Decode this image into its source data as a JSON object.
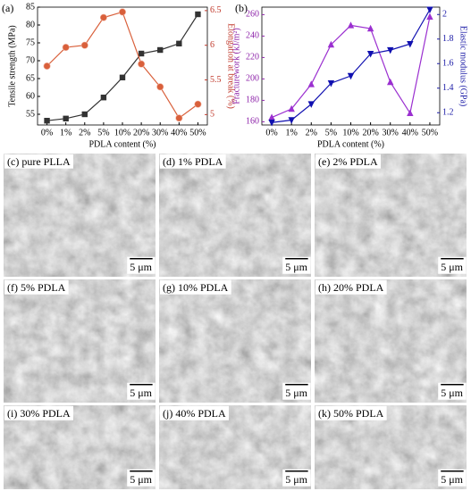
{
  "chart_data": [
    {
      "type": "line",
      "panel": "(a)",
      "x_label": "PDLA content (%)",
      "y_label": "Tensile strength (MPa)",
      "y2_label": "Elongation at break (%)",
      "categories": [
        "0%",
        "1%",
        "2%",
        "5%",
        "10%",
        "20%",
        "30%",
        "40%",
        "50%"
      ],
      "ylim": [
        52,
        85
      ],
      "yticks": [
        55,
        60,
        65,
        70,
        75,
        80,
        85
      ],
      "y2lim": [
        4.85,
        6.55
      ],
      "y2ticks": [
        5,
        5.5,
        6,
        6.5
      ],
      "y_color": "#000000",
      "y2_color": "#c0392b",
      "series": [
        {
          "name": "Tensile strength",
          "color": "#333333",
          "marker": "square",
          "values": [
            53.2,
            53.8,
            55,
            59.7,
            65.3,
            72,
            73,
            74.8,
            83
          ]
        },
        {
          "name": "Elongation at break",
          "color": "#d9603b",
          "marker": "circle",
          "axis": "y2",
          "values": [
            5.7,
            5.97,
            6.0,
            6.4,
            6.48,
            5.73,
            5.4,
            4.95,
            5.15
          ]
        }
      ]
    },
    {
      "type": "line",
      "panel": "(b)",
      "x_label": "PDLA content (%)",
      "y_label": "Fracturework (kJ/m²)",
      "y2_label": "Elastic modulus (GPa)",
      "categories": [
        "0%",
        "1%",
        "2%",
        "5%",
        "10%",
        "20%",
        "30%",
        "40%",
        "50%"
      ],
      "ylim": [
        157,
        267
      ],
      "yticks": [
        160,
        180,
        200,
        220,
        240,
        260
      ],
      "y2lim": [
        1.1,
        2.06
      ],
      "y2ticks": [
        1.2,
        1.4,
        1.6,
        1.8,
        2
      ],
      "y_color": "#8e24aa",
      "y2_color": "#1a1aa6",
      "series": [
        {
          "name": "Fracturework",
          "color": "#9b30d0",
          "marker": "triangle",
          "values": [
            164,
            172,
            195,
            232,
            250,
            247,
            197,
            168,
            258
          ]
        },
        {
          "name": "Elastic modulus",
          "color": "#1010b0",
          "marker": "triangle-down",
          "axis": "y2",
          "values": [
            1.12,
            1.14,
            1.27,
            1.44,
            1.5,
            1.68,
            1.71,
            1.76,
            2.04
          ]
        }
      ]
    }
  ],
  "panels": [
    {
      "label": "(c) pure PLLA",
      "scale": "5 μm"
    },
    {
      "label": "(d) 1% PDLA",
      "scale": "5 μm"
    },
    {
      "label": "(e) 2% PDLA",
      "scale": "5 μm"
    },
    {
      "label": "(f) 5% PDLA",
      "scale": "5 μm"
    },
    {
      "label": "(g) 10% PDLA",
      "scale": "5 μm"
    },
    {
      "label": "(h) 20% PDLA",
      "scale": "5 μm"
    },
    {
      "label": "(i) 30% PDLA",
      "scale": "5 μm"
    },
    {
      "label": "(j) 40% PDLA",
      "scale": "5 μm"
    },
    {
      "label": "(k) 50% PDLA",
      "scale": "5 μm"
    }
  ]
}
